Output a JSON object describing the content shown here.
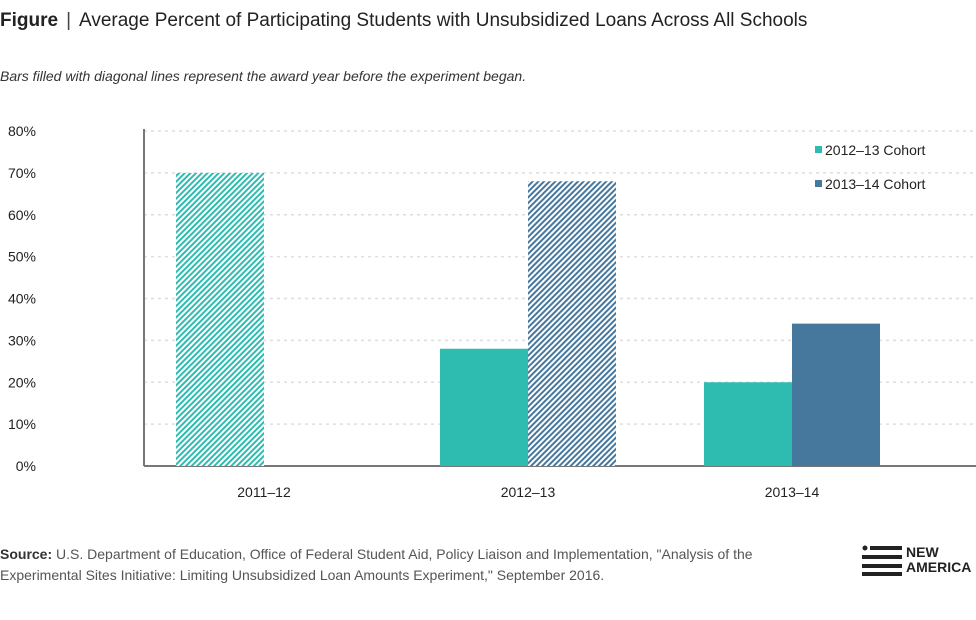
{
  "header": {
    "label": "Figure",
    "separator": "|",
    "title": "Average Percent of Participating Students with Unsubsidized Loans Across All Schools"
  },
  "subtitle": "Bars filled with diagonal lines represent the award year before the experiment began.",
  "chart_data": {
    "type": "bar",
    "title": "Average Percent of Participating Students with Unsubsidized Loans Across All Schools",
    "categories": [
      "2011–12",
      "2012–13",
      "2013–14"
    ],
    "series": [
      {
        "name": "2012–13 Cohort",
        "color": "#2fbcb0",
        "values": [
          70,
          28,
          20
        ],
        "hatched": [
          true,
          false,
          false
        ]
      },
      {
        "name": "2013–14 Cohort",
        "color": "#46789e",
        "values": [
          null,
          68,
          34
        ],
        "hatched": [
          false,
          true,
          false
        ]
      }
    ],
    "ylim": [
      0,
      80
    ],
    "yticks": [
      "0%",
      "10%",
      "20%",
      "30%",
      "40%",
      "50%",
      "60%",
      "70%",
      "80%"
    ],
    "grid": true,
    "legend": "top-right"
  },
  "source": {
    "label": "Source:",
    "text": "U.S. Department of Education, Office of Federal Student Aid, Policy Liaison and Implementation, \"Analysis of the Experimental Sites Initiative: Limiting Unsubsidized Loan Amounts Experiment,\" September 2016."
  },
  "logo": {
    "line1": "NEW",
    "line2": "AMERICA"
  }
}
